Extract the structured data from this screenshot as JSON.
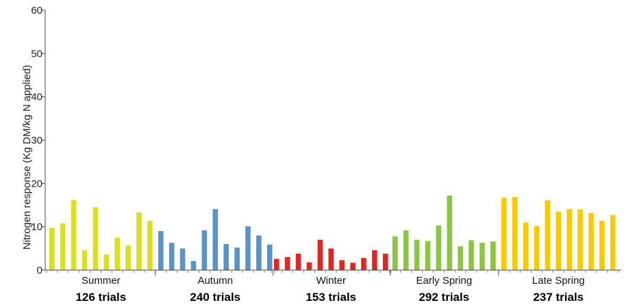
{
  "chart_data": {
    "type": "bar",
    "title": "",
    "xlabel": "",
    "ylabel": "Nitrogen response (Kg DM/kg N applied)",
    "ylim": [
      0,
      60
    ],
    "yticks": [
      "0",
      "10",
      "20",
      "30",
      "40",
      "50",
      "60"
    ],
    "grid": false,
    "groups": [
      {
        "name": "Summer",
        "trials": "126 trials",
        "color": "#d9e021",
        "values": [
          9.8,
          10.8,
          16.2,
          4.6,
          14.5,
          3.6,
          7.5,
          5.7,
          13.3,
          11.4
        ]
      },
      {
        "name": "Autumn",
        "trials": "240 trials",
        "color": "#5b93c9",
        "values": [
          9.0,
          6.3,
          5.0,
          2.1,
          9.2,
          14.1,
          6.0,
          5.2,
          10.1,
          8.0,
          5.9
        ]
      },
      {
        "name": "Winter",
        "trials": "153 trials",
        "color": "#e32522",
        "values": [
          2.6,
          3.0,
          3.8,
          1.8,
          7.0,
          5.0,
          2.3,
          1.7,
          2.8,
          4.6,
          3.8
        ]
      },
      {
        "name": "Early Spring",
        "trials": "292 trials",
        "color": "#8cc63f",
        "values": [
          7.8,
          9.2,
          7.0,
          6.7,
          10.3,
          17.2,
          5.5,
          6.9,
          6.3,
          6.6
        ]
      },
      {
        "name": "Late Spring",
        "trials": "237 trials",
        "color": "#fcc800",
        "values": [
          16.7,
          16.9,
          11.0,
          10.2,
          16.1,
          13.5,
          14.1,
          14.0,
          13.2,
          11.4,
          12.7
        ]
      }
    ]
  }
}
